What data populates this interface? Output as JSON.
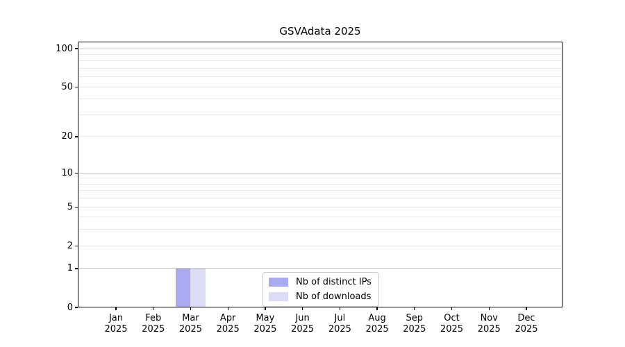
{
  "chart_data": {
    "type": "bar",
    "title": "GSVAdata 2025",
    "xlabel": "",
    "ylabel": "",
    "year": "2025",
    "categories": [
      "Jan",
      "Feb",
      "Mar",
      "Apr",
      "May",
      "Jun",
      "Jul",
      "Aug",
      "Sep",
      "Oct",
      "Nov",
      "Dec"
    ],
    "series": [
      {
        "name": "Nb of distinct IPs",
        "color": "#aaaaf0",
        "values": [
          0,
          0,
          1,
          0,
          0,
          0,
          0,
          0,
          0,
          0,
          0,
          0
        ]
      },
      {
        "name": "Nb of downloads",
        "color": "#dcdcf7",
        "values": [
          0,
          0,
          1,
          0,
          0,
          0,
          0,
          0,
          0,
          0,
          0,
          0
        ]
      }
    ],
    "yscale": "log1p",
    "ylim": [
      0,
      113
    ],
    "ytick_values": [
      0,
      1,
      2,
      5,
      10,
      20,
      50,
      100
    ],
    "major_grid_values": [
      1,
      10,
      100
    ],
    "minor_grid_values": [
      2,
      3,
      4,
      5,
      6,
      7,
      8,
      9,
      20,
      30,
      40,
      50,
      60,
      70,
      80,
      90
    ],
    "grid": "horizontal major+minor",
    "legend_position": "lower center",
    "colors": {
      "background": "#ffffff",
      "axis": "#000000",
      "major_grid": "#c6c6c6",
      "minor_grid": "#e7e7e7",
      "legend_border": "#cccccc"
    }
  }
}
